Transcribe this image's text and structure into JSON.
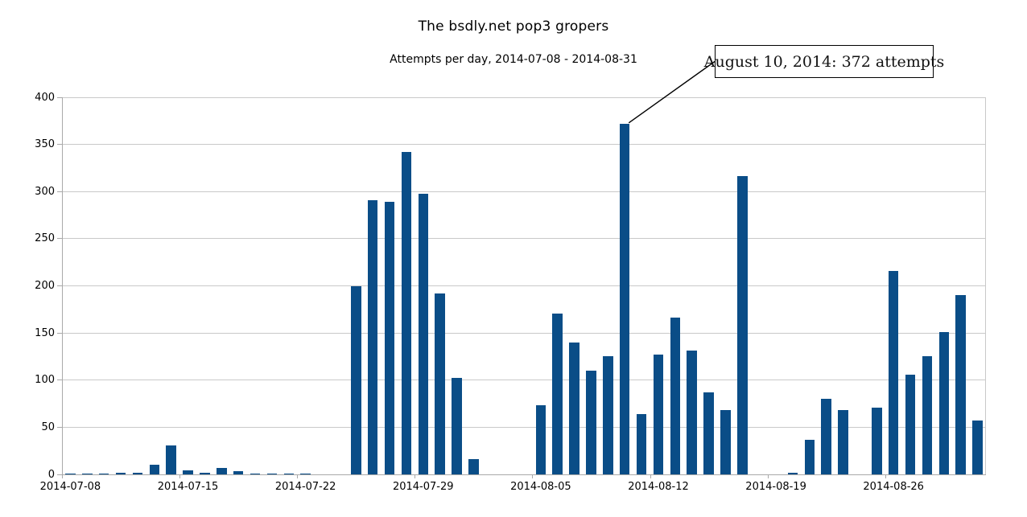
{
  "title": "The bsdly.net pop3 gropers",
  "subtitle": "Attempts per day, 2014-07-08 - 2014-08-31",
  "annotation": {
    "text": "August 10, 2014: 372 attempts",
    "target_category": "2014-08-10",
    "target_value": 372
  },
  "colors": {
    "bar": "#0a4d87",
    "gridline": "#c9c9c9",
    "axis": "#a9a9a9",
    "text": "#000000",
    "background": "#ffffff",
    "annotation_border": "#000000"
  },
  "chart_data": {
    "type": "bar",
    "title": "The bsdly.net pop3 gropers",
    "subtitle": "Attempts per day, 2014-07-08 - 2014-08-31",
    "xlabel": "",
    "ylabel": "",
    "ylim": [
      0,
      400
    ],
    "y_ticks": [
      0,
      50,
      100,
      150,
      200,
      250,
      300,
      350,
      400
    ],
    "grid": true,
    "legend": "none",
    "x_tick_labels": [
      "2014-07-08",
      "2014-07-15",
      "2014-07-22",
      "2014-07-29",
      "2014-08-05",
      "2014-08-12",
      "2014-08-19",
      "2014-08-26"
    ],
    "x_tick_label_interval_days": 7,
    "categories": [
      "2014-07-08",
      "2014-07-09",
      "2014-07-10",
      "2014-07-11",
      "2014-07-12",
      "2014-07-13",
      "2014-07-14",
      "2014-07-15",
      "2014-07-16",
      "2014-07-17",
      "2014-07-18",
      "2014-07-19",
      "2014-07-20",
      "2014-07-21",
      "2014-07-22",
      "2014-07-23",
      "2014-07-24",
      "2014-07-25",
      "2014-07-26",
      "2014-07-27",
      "2014-07-28",
      "2014-07-29",
      "2014-07-30",
      "2014-07-31",
      "2014-08-01",
      "2014-08-02",
      "2014-08-03",
      "2014-08-04",
      "2014-08-05",
      "2014-08-06",
      "2014-08-07",
      "2014-08-08",
      "2014-08-09",
      "2014-08-10",
      "2014-08-11",
      "2014-08-12",
      "2014-08-13",
      "2014-08-14",
      "2014-08-15",
      "2014-08-16",
      "2014-08-17",
      "2014-08-18",
      "2014-08-19",
      "2014-08-20",
      "2014-08-21",
      "2014-08-22",
      "2014-08-23",
      "2014-08-24",
      "2014-08-25",
      "2014-08-26",
      "2014-08-27",
      "2014-08-28",
      "2014-08-29",
      "2014-08-30",
      "2014-08-31"
    ],
    "values": [
      1,
      1,
      1,
      2,
      2,
      10,
      31,
      4,
      2,
      7,
      3,
      1,
      1,
      1,
      1,
      0,
      0,
      200,
      291,
      289,
      342,
      298,
      192,
      102,
      16,
      0,
      0,
      0,
      73,
      171,
      140,
      110,
      125,
      372,
      64,
      127,
      166,
      131,
      87,
      68,
      316,
      0,
      0,
      2,
      37,
      80,
      68,
      0,
      71,
      216,
      106,
      125,
      151,
      190,
      57
    ]
  }
}
